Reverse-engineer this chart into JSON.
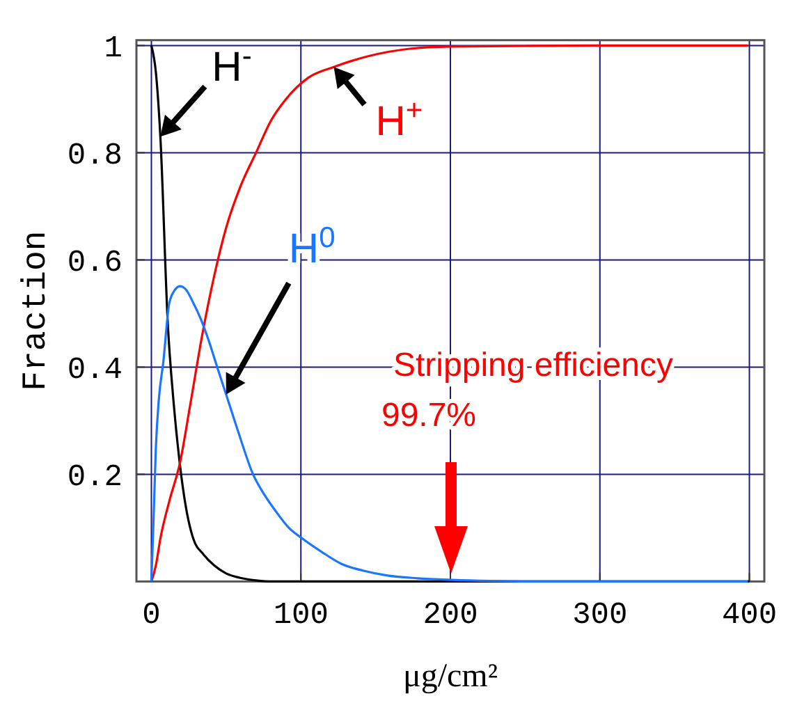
{
  "chart_data": {
    "type": "line",
    "xlabel": "μg/cm²",
    "ylabel": "Fraction",
    "xlim": [
      -10,
      410
    ],
    "ylim": [
      0,
      1.01
    ],
    "xticks": [
      0,
      100,
      200,
      300,
      400
    ],
    "yticks": [
      0.2,
      0.4,
      0.6,
      0.8,
      1
    ],
    "grid": true,
    "marker": "none",
    "line_style": "solid",
    "series": [
      {
        "name": "H$^{-}$",
        "color": "#000000",
        "x": [
          0,
          3,
          6,
          11,
          15,
          19,
          23,
          28,
          35,
          42,
          50,
          59,
          70,
          81,
          100,
          150,
          200,
          300,
          400
        ],
        "values": [
          1,
          0.95,
          0.83,
          0.48,
          0.33,
          0.22,
          0.14,
          0.08,
          0.05,
          0.03,
          0.015,
          0.007,
          0.002,
          0,
          0,
          0,
          0,
          0,
          0
        ]
      },
      {
        "name": "H$^{+}$",
        "color": "#ff0000",
        "x": [
          0,
          3,
          6,
          12,
          19,
          26,
          34,
          42,
          50,
          60,
          70,
          80,
          90,
          105,
          122,
          145,
          173,
          200,
          240,
          293,
          350,
          399
        ],
        "values": [
          0,
          0.03,
          0.08,
          0.15,
          0.22,
          0.33,
          0.46,
          0.57,
          0.66,
          0.74,
          0.8,
          0.86,
          0.9,
          0.94,
          0.96,
          0.98,
          0.994,
          0.998,
          0.999,
          1,
          1,
          1
        ]
      },
      {
        "name": "H$^{0}$",
        "color": "#1a75ff",
        "x": [
          0,
          1.5,
          3,
          5,
          8,
          12,
          16,
          19,
          23,
          28,
          33,
          39,
          44,
          50,
          58,
          68,
          76,
          84,
          92,
          101,
          114,
          127,
          142,
          158,
          178,
          201,
          227,
          260,
          330,
          399
        ],
        "values": [
          0,
          0.12,
          0.25,
          0.34,
          0.41,
          0.52,
          0.545,
          0.551,
          0.545,
          0.52,
          0.49,
          0.444,
          0.4,
          0.349,
          0.28,
          0.2,
          0.16,
          0.128,
          0.1,
          0.08,
          0.055,
          0.033,
          0.02,
          0.011,
          0.006,
          0.003,
          0.001,
          0,
          0,
          0
        ]
      }
    ],
    "annotations": [
      "Stripping efficiency\n99.7%"
    ]
  }
}
